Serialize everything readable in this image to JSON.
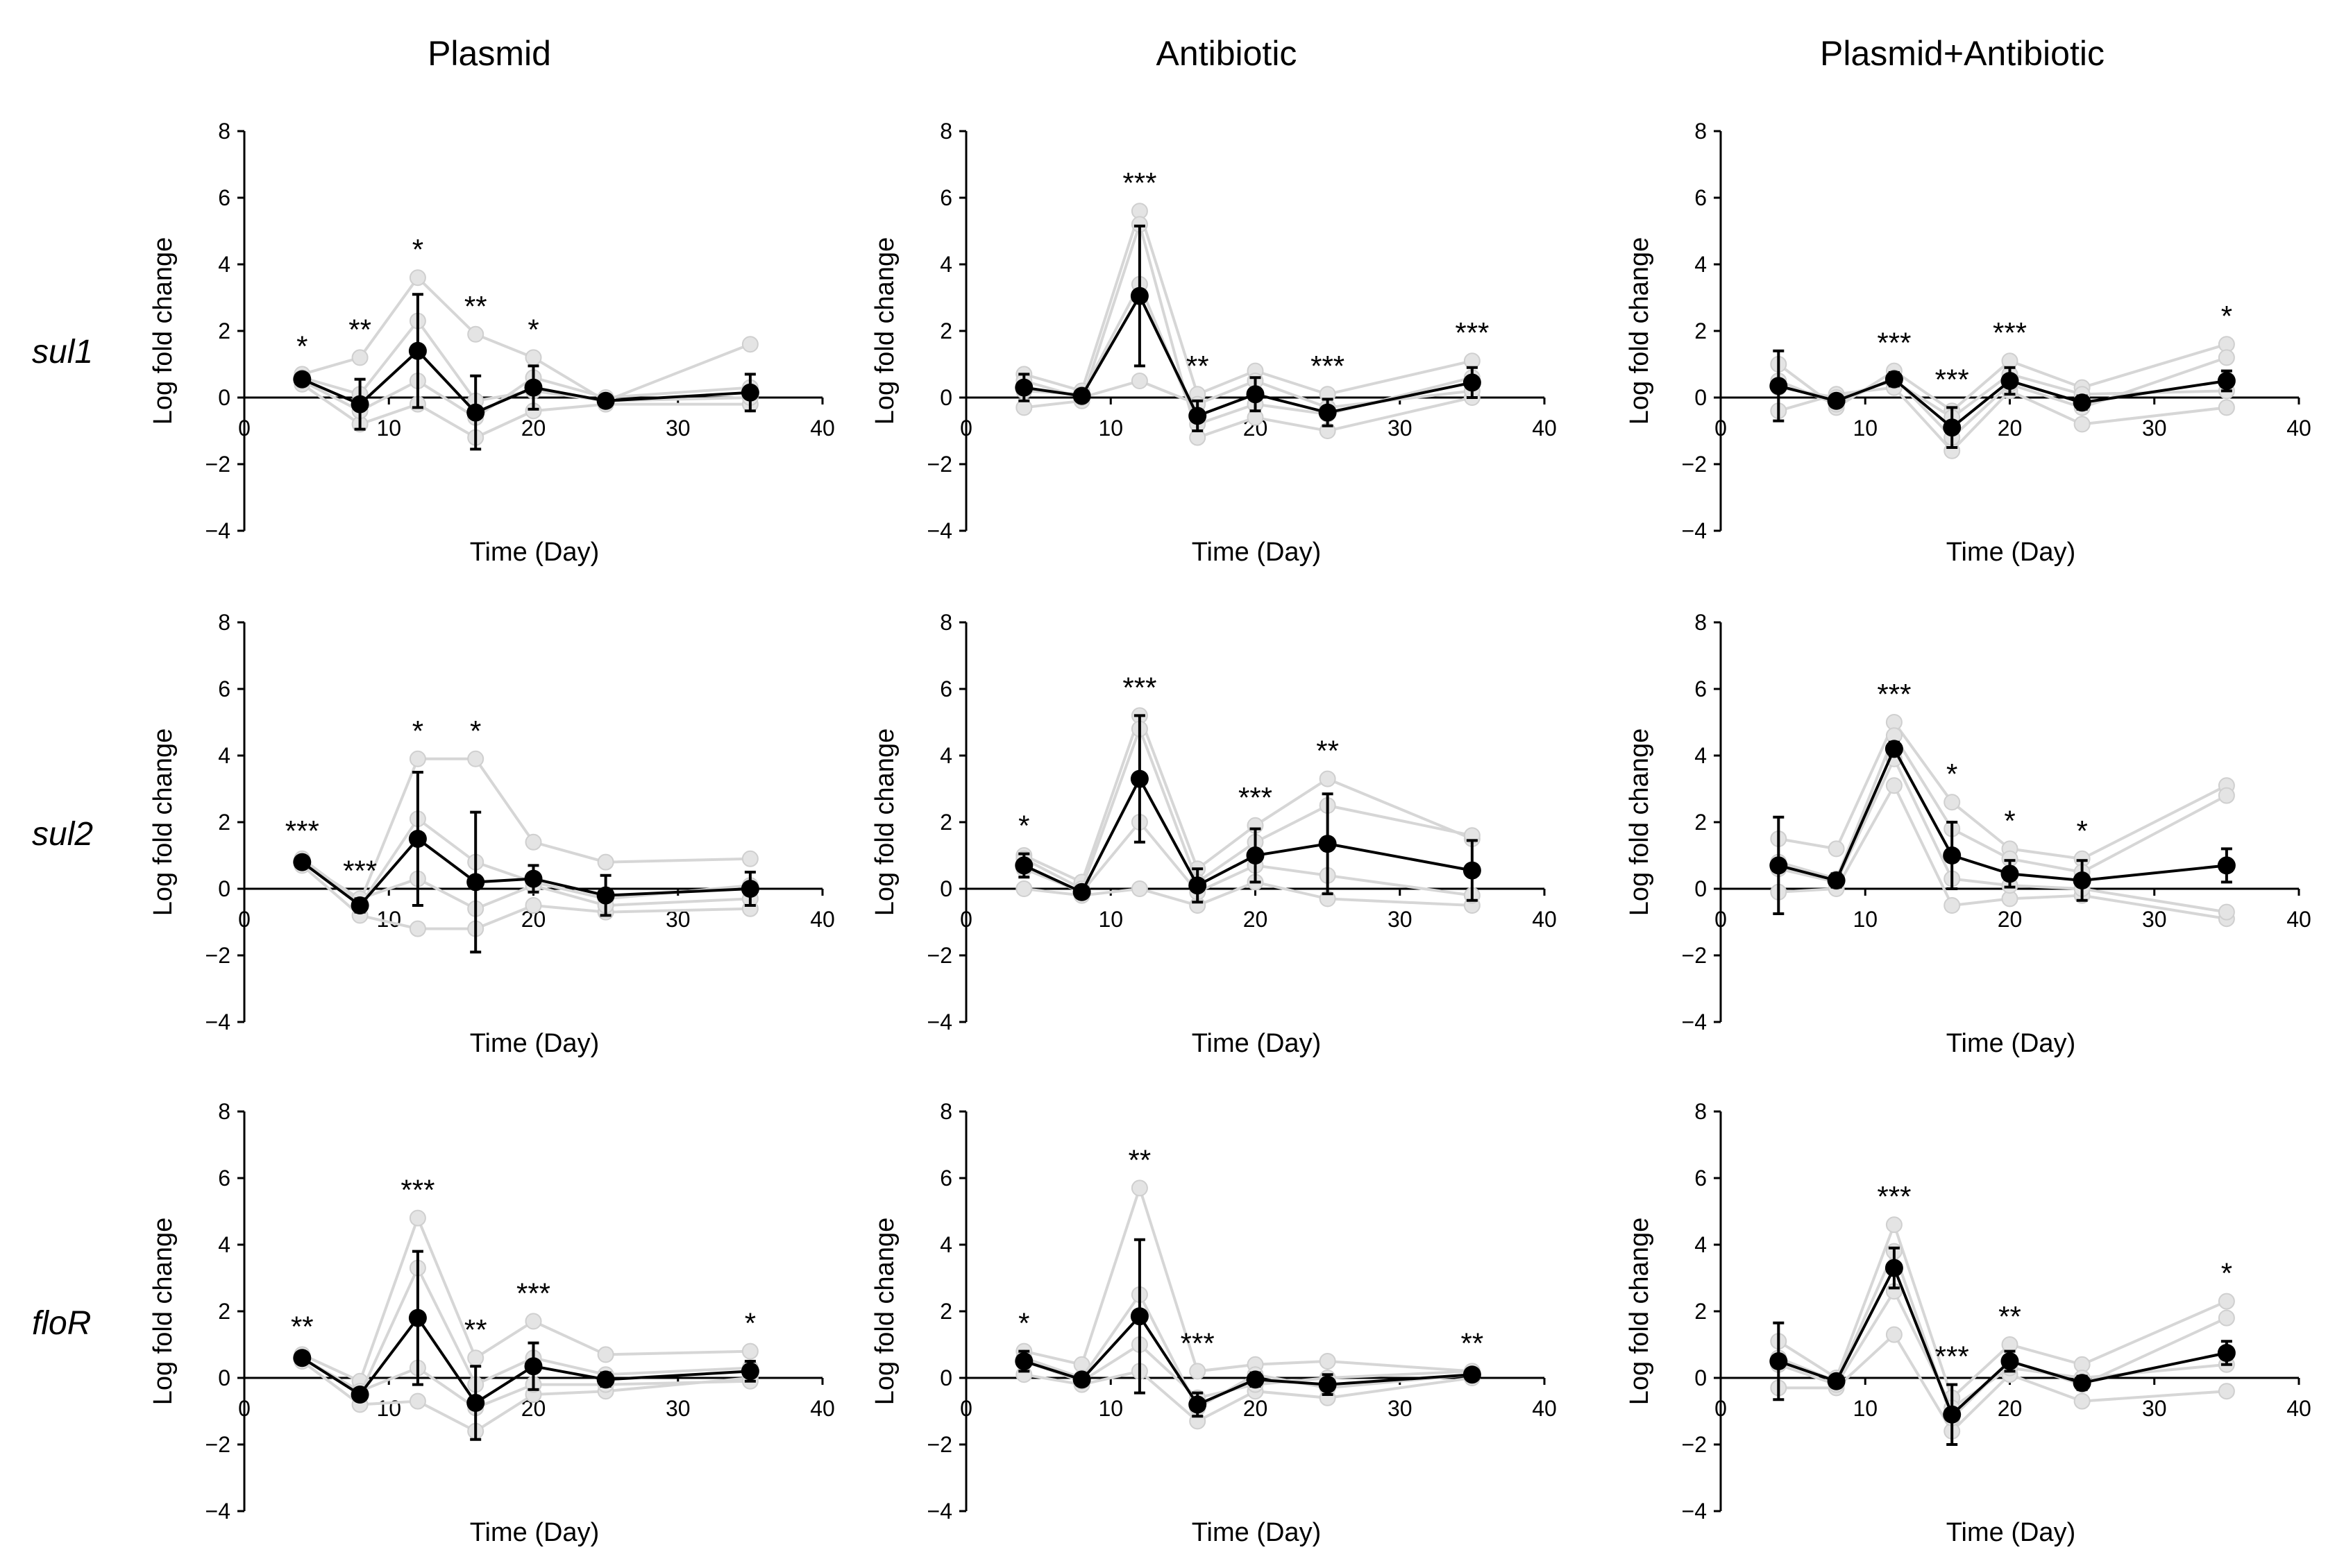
{
  "figure": {
    "col_titles": [
      "Plasmid",
      "Antibiotic",
      "Plasmid+Antibiotic"
    ],
    "row_labels": [
      "sul1",
      "sul2",
      "floR"
    ]
  },
  "chart_data": [
    {
      "type": "line",
      "gene": "sul1",
      "condition": "Plasmid",
      "xlabel": "Time (Day)",
      "ylabel": "Log fold change",
      "xlim": [
        0,
        40
      ],
      "ylim": [
        -4,
        8
      ],
      "xticks": [
        0,
        10,
        20,
        30,
        40
      ],
      "yticks": [
        -4,
        -2,
        0,
        2,
        4,
        6,
        8
      ],
      "mean": [
        {
          "x": 4,
          "y": 0.55,
          "err": 0.15,
          "sig": "*"
        },
        {
          "x": 8,
          "y": -0.2,
          "err": 0.75,
          "sig": "**"
        },
        {
          "x": 12,
          "y": 1.4,
          "err": 1.7,
          "sig": "*"
        },
        {
          "x": 16,
          "y": -0.45,
          "err": 1.1,
          "sig": "**"
        },
        {
          "x": 20,
          "y": 0.3,
          "err": 0.65,
          "sig": "*"
        },
        {
          "x": 25,
          "y": -0.1,
          "err": 0.1,
          "sig": ""
        },
        {
          "x": 35,
          "y": 0.15,
          "err": 0.55,
          "sig": ""
        }
      ],
      "replicates": [
        [
          0.7,
          1.2,
          3.6,
          1.9,
          1.2,
          -0.1,
          1.6
        ],
        [
          0.4,
          -0.8,
          -0.2,
          -1.2,
          -0.4,
          -0.2,
          -0.2
        ],
        [
          0.5,
          -0.4,
          0.5,
          -0.6,
          0.6,
          0.0,
          0.3
        ],
        [
          0.6,
          0.1,
          2.3,
          -0.1,
          0.2,
          -0.1,
          0.0
        ]
      ]
    },
    {
      "type": "line",
      "gene": "sul1",
      "condition": "Antibiotic",
      "xlabel": "Time (Day)",
      "ylabel": "Log fold change",
      "xlim": [
        0,
        40
      ],
      "ylim": [
        -4,
        8
      ],
      "xticks": [
        0,
        10,
        20,
        30,
        40
      ],
      "yticks": [
        -4,
        -2,
        0,
        2,
        4,
        6,
        8
      ],
      "mean": [
        {
          "x": 4,
          "y": 0.3,
          "err": 0.4,
          "sig": ""
        },
        {
          "x": 8,
          "y": 0.05,
          "err": 0.1,
          "sig": ""
        },
        {
          "x": 12,
          "y": 3.05,
          "err": 2.1,
          "sig": "***"
        },
        {
          "x": 16,
          "y": -0.55,
          "err": 0.45,
          "sig": "**"
        },
        {
          "x": 20,
          "y": 0.1,
          "err": 0.5,
          "sig": ""
        },
        {
          "x": 25,
          "y": -0.45,
          "err": 0.4,
          "sig": "***"
        },
        {
          "x": 35,
          "y": 0.45,
          "err": 0.45,
          "sig": "***"
        }
      ],
      "replicates": [
        [
          0.7,
          0.2,
          5.6,
          0.1,
          0.8,
          0.1,
          1.1
        ],
        [
          -0.3,
          -0.1,
          5.2,
          -1.2,
          -0.6,
          -1.0,
          0.0
        ],
        [
          0.5,
          0.0,
          0.5,
          -0.2,
          0.5,
          -0.3,
          0.2
        ],
        [
          0.2,
          0.1,
          3.4,
          -0.8,
          -0.2,
          -0.5,
          0.6
        ]
      ]
    },
    {
      "type": "line",
      "gene": "sul1",
      "condition": "Plasmid+Antibiotic",
      "xlabel": "Time (Day)",
      "ylabel": "Log fold change",
      "xlim": [
        0,
        40
      ],
      "ylim": [
        -4,
        8
      ],
      "xticks": [
        0,
        10,
        20,
        30,
        40
      ],
      "yticks": [
        -4,
        -2,
        0,
        2,
        4,
        6,
        8
      ],
      "mean": [
        {
          "x": 4,
          "y": 0.35,
          "err": 1.05,
          "sig": ""
        },
        {
          "x": 8,
          "y": -0.1,
          "err": 0.1,
          "sig": ""
        },
        {
          "x": 12,
          "y": 0.55,
          "err": 0.2,
          "sig": "***"
        },
        {
          "x": 16,
          "y": -0.9,
          "err": 0.6,
          "sig": "***"
        },
        {
          "x": 20,
          "y": 0.5,
          "err": 0.4,
          "sig": "***"
        },
        {
          "x": 25,
          "y": -0.15,
          "err": 0.2,
          "sig": ""
        },
        {
          "x": 35,
          "y": 0.5,
          "err": 0.3,
          "sig": "*"
        }
      ],
      "replicates": [
        [
          1.0,
          -0.3,
          0.8,
          -0.4,
          1.1,
          0.3,
          1.6
        ],
        [
          -0.4,
          0.1,
          0.3,
          -1.6,
          0.2,
          -0.8,
          -0.3
        ],
        [
          0.5,
          -0.2,
          0.6,
          -1.2,
          0.4,
          -0.3,
          1.2
        ],
        [
          0.3,
          0.0,
          0.5,
          -0.6,
          0.7,
          0.1,
          0.2
        ]
      ]
    },
    {
      "type": "line",
      "gene": "sul2",
      "condition": "Plasmid",
      "xlabel": "Time (Day)",
      "ylabel": "Log fold change",
      "xlim": [
        0,
        40
      ],
      "ylim": [
        -4,
        8
      ],
      "xticks": [
        0,
        10,
        20,
        30,
        40
      ],
      "yticks": [
        -4,
        -2,
        0,
        2,
        4,
        6,
        8
      ],
      "mean": [
        {
          "x": 4,
          "y": 0.8,
          "err": 0.1,
          "sig": "***"
        },
        {
          "x": 8,
          "y": -0.5,
          "err": 0.2,
          "sig": "***"
        },
        {
          "x": 12,
          "y": 1.5,
          "err": 2.0,
          "sig": "*"
        },
        {
          "x": 16,
          "y": 0.2,
          "err": 2.1,
          "sig": "*"
        },
        {
          "x": 20,
          "y": 0.3,
          "err": 0.4,
          "sig": ""
        },
        {
          "x": 25,
          "y": -0.2,
          "err": 0.6,
          "sig": ""
        },
        {
          "x": 35,
          "y": 0.0,
          "err": 0.5,
          "sig": ""
        }
      ],
      "replicates": [
        [
          0.9,
          -0.4,
          3.9,
          3.9,
          1.4,
          0.8,
          0.9
        ],
        [
          0.7,
          -0.8,
          -1.2,
          -1.2,
          -0.5,
          -0.7,
          -0.6
        ],
        [
          0.8,
          -0.5,
          2.1,
          0.8,
          0.2,
          -0.3,
          0.1
        ],
        [
          0.8,
          -0.3,
          0.3,
          -0.6,
          0.1,
          -0.5,
          -0.3
        ]
      ]
    },
    {
      "type": "line",
      "gene": "sul2",
      "condition": "Antibiotic",
      "xlabel": "Time (Day)",
      "ylabel": "Log fold change",
      "xlim": [
        0,
        40
      ],
      "ylim": [
        -4,
        8
      ],
      "xticks": [
        0,
        10,
        20,
        30,
        40
      ],
      "yticks": [
        -4,
        -2,
        0,
        2,
        4,
        6,
        8
      ],
      "mean": [
        {
          "x": 4,
          "y": 0.7,
          "err": 0.35,
          "sig": "*"
        },
        {
          "x": 8,
          "y": -0.1,
          "err": 0.1,
          "sig": ""
        },
        {
          "x": 12,
          "y": 3.3,
          "err": 1.9,
          "sig": "***"
        },
        {
          "x": 16,
          "y": 0.1,
          "err": 0.5,
          "sig": ""
        },
        {
          "x": 20,
          "y": 1.0,
          "err": 0.8,
          "sig": "***"
        },
        {
          "x": 25,
          "y": 1.35,
          "err": 1.5,
          "sig": "**"
        },
        {
          "x": 35,
          "y": 0.55,
          "err": 0.9,
          "sig": ""
        }
      ],
      "replicates": [
        [
          1.0,
          0.2,
          5.2,
          0.6,
          1.9,
          3.3,
          1.5
        ],
        [
          0.0,
          -0.2,
          0.0,
          -0.5,
          0.2,
          -0.3,
          -0.5
        ],
        [
          0.9,
          0.0,
          4.8,
          0.2,
          1.4,
          2.5,
          1.6
        ],
        [
          0.6,
          -0.1,
          2.0,
          -0.1,
          0.7,
          0.4,
          -0.2
        ]
      ]
    },
    {
      "type": "line",
      "gene": "sul2",
      "condition": "Plasmid+Antibiotic",
      "xlabel": "Time (Day)",
      "ylabel": "Log fold change",
      "xlim": [
        0,
        40
      ],
      "ylim": [
        -4,
        8
      ],
      "xticks": [
        0,
        10,
        20,
        30,
        40
      ],
      "yticks": [
        -4,
        -2,
        0,
        2,
        4,
        6,
        8
      ],
      "mean": [
        {
          "x": 4,
          "y": 0.7,
          "err": 1.45,
          "sig": ""
        },
        {
          "x": 8,
          "y": 0.25,
          "err": 0.2,
          "sig": ""
        },
        {
          "x": 12,
          "y": 4.2,
          "err": 0.2,
          "sig": "***"
        },
        {
          "x": 16,
          "y": 1.0,
          "err": 1.0,
          "sig": "*"
        },
        {
          "x": 20,
          "y": 0.45,
          "err": 0.4,
          "sig": "*"
        },
        {
          "x": 25,
          "y": 0.25,
          "err": 0.6,
          "sig": "*"
        },
        {
          "x": 35,
          "y": 0.7,
          "err": 0.5,
          "sig": ""
        }
      ],
      "replicates": [
        [
          1.5,
          1.2,
          5.0,
          2.6,
          1.2,
          0.9,
          3.1
        ],
        [
          -0.1,
          0.0,
          3.1,
          -0.5,
          -0.3,
          -0.2,
          -0.9
        ],
        [
          0.8,
          0.3,
          4.6,
          1.8,
          0.9,
          0.5,
          2.8
        ],
        [
          0.6,
          0.2,
          3.9,
          0.3,
          0.1,
          0.0,
          -0.7
        ]
      ]
    },
    {
      "type": "line",
      "gene": "floR",
      "condition": "Plasmid",
      "xlabel": "Time (Day)",
      "ylabel": "Log fold change",
      "xlim": [
        0,
        40
      ],
      "ylim": [
        -4,
        8
      ],
      "xticks": [
        0,
        10,
        20,
        30,
        40
      ],
      "yticks": [
        -4,
        -2,
        0,
        2,
        4,
        6,
        8
      ],
      "mean": [
        {
          "x": 4,
          "y": 0.6,
          "err": 0.1,
          "sig": "**"
        },
        {
          "x": 8,
          "y": -0.5,
          "err": 0.1,
          "sig": ""
        },
        {
          "x": 12,
          "y": 1.8,
          "err": 2.0,
          "sig": "***"
        },
        {
          "x": 16,
          "y": -0.75,
          "err": 1.1,
          "sig": "**"
        },
        {
          "x": 20,
          "y": 0.35,
          "err": 0.7,
          "sig": "***"
        },
        {
          "x": 25,
          "y": -0.05,
          "err": 0.2,
          "sig": ""
        },
        {
          "x": 35,
          "y": 0.2,
          "err": 0.3,
          "sig": "*"
        }
      ],
      "replicates": [
        [
          0.7,
          -0.1,
          4.8,
          0.6,
          1.7,
          0.7,
          0.8
        ],
        [
          0.5,
          -0.8,
          -0.7,
          -1.6,
          -0.5,
          -0.4,
          0.0
        ],
        [
          0.6,
          -0.5,
          3.3,
          -0.2,
          0.6,
          0.1,
          0.3
        ],
        [
          0.6,
          -0.4,
          0.3,
          -0.9,
          -0.2,
          -0.2,
          -0.1
        ]
      ]
    },
    {
      "type": "line",
      "gene": "floR",
      "condition": "Antibiotic",
      "xlabel": "Time (Day)",
      "ylabel": "Log fold change",
      "xlim": [
        0,
        40
      ],
      "ylim": [
        -4,
        8
      ],
      "xticks": [
        0,
        10,
        20,
        30,
        40
      ],
      "yticks": [
        -4,
        -2,
        0,
        2,
        4,
        6,
        8
      ],
      "mean": [
        {
          "x": 4,
          "y": 0.5,
          "err": 0.3,
          "sig": "*"
        },
        {
          "x": 8,
          "y": -0.05,
          "err": 0.1,
          "sig": ""
        },
        {
          "x": 12,
          "y": 1.85,
          "err": 2.3,
          "sig": "**"
        },
        {
          "x": 16,
          "y": -0.8,
          "err": 0.35,
          "sig": "***"
        },
        {
          "x": 20,
          "y": -0.05,
          "err": 0.2,
          "sig": ""
        },
        {
          "x": 25,
          "y": -0.2,
          "err": 0.3,
          "sig": ""
        },
        {
          "x": 35,
          "y": 0.1,
          "err": 0.1,
          "sig": "**"
        }
      ],
      "replicates": [
        [
          0.8,
          0.4,
          5.7,
          0.2,
          0.4,
          0.5,
          0.2
        ],
        [
          0.1,
          -0.2,
          0.2,
          -1.3,
          -0.4,
          -0.6,
          0.0
        ],
        [
          0.6,
          0.0,
          2.5,
          -0.9,
          0.1,
          -0.3,
          0.1
        ],
        [
          0.5,
          -0.1,
          1.0,
          -0.6,
          -0.2,
          0.0,
          0.2
        ]
      ]
    },
    {
      "type": "line",
      "gene": "floR",
      "condition": "Plasmid+Antibiotic",
      "xlabel": "Time (Day)",
      "ylabel": "Log fold change",
      "xlim": [
        0,
        40
      ],
      "ylim": [
        -4,
        8
      ],
      "xticks": [
        0,
        10,
        20,
        30,
        40
      ],
      "yticks": [
        -4,
        -2,
        0,
        2,
        4,
        6,
        8
      ],
      "mean": [
        {
          "x": 4,
          "y": 0.5,
          "err": 1.15,
          "sig": ""
        },
        {
          "x": 8,
          "y": -0.1,
          "err": 0.1,
          "sig": ""
        },
        {
          "x": 12,
          "y": 3.3,
          "err": 0.6,
          "sig": "***"
        },
        {
          "x": 16,
          "y": -1.1,
          "err": 0.9,
          "sig": "***"
        },
        {
          "x": 20,
          "y": 0.5,
          "err": 0.3,
          "sig": "**"
        },
        {
          "x": 25,
          "y": -0.15,
          "err": 0.2,
          "sig": ""
        },
        {
          "x": 35,
          "y": 0.75,
          "err": 0.35,
          "sig": "*"
        }
      ],
      "replicates": [
        [
          1.1,
          0.0,
          4.6,
          -0.6,
          1.0,
          0.4,
          2.3
        ],
        [
          -0.3,
          -0.3,
          1.3,
          -1.6,
          0.1,
          -0.7,
          -0.4
        ],
        [
          0.6,
          -0.1,
          3.8,
          -1.2,
          0.5,
          -0.2,
          1.8
        ],
        [
          0.4,
          -0.2,
          2.6,
          -0.9,
          0.3,
          0.0,
          0.4
        ]
      ]
    }
  ]
}
